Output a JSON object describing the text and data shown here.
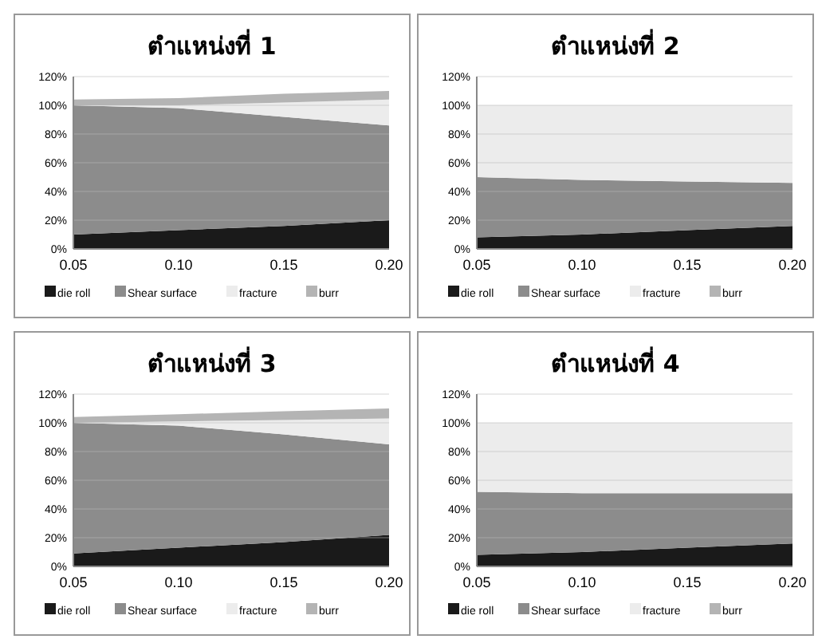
{
  "chart_data": [
    {
      "type": "area",
      "title": "ตำแหน่งที่ 1",
      "stacked": true,
      "x": [
        0.05,
        0.1,
        0.15,
        0.2
      ],
      "xlim": [
        0.05,
        0.2
      ],
      "xticks": [
        {
          "value": 0.05,
          "label": "0.05"
        },
        {
          "value": 0.1,
          "label": "0.10"
        },
        {
          "value": 0.15,
          "label": "0.15"
        },
        {
          "value": 0.2,
          "label": "0.20"
        }
      ],
      "ylim": [
        0,
        120
      ],
      "yticks": [
        {
          "value": 0,
          "label": "0%"
        },
        {
          "value": 20,
          "label": "20%"
        },
        {
          "value": 40,
          "label": "40%"
        },
        {
          "value": 60,
          "label": "60%"
        },
        {
          "value": 80,
          "label": "80%"
        },
        {
          "value": 100,
          "label": "100%"
        },
        {
          "value": 120,
          "label": "120%"
        }
      ],
      "grid": "y",
      "legend": "bottom",
      "series": [
        {
          "name": "die roll",
          "color": "#1a1a1a",
          "values": [
            10,
            13,
            16,
            20
          ]
        },
        {
          "name": "Shear surface",
          "color": "#8c8c8c",
          "values": [
            90,
            85,
            76,
            66
          ]
        },
        {
          "name": "fracture",
          "color": "#ececec",
          "values": [
            0,
            2,
            10,
            18
          ]
        },
        {
          "name": "burr",
          "color": "#b4b4b4",
          "values": [
            4,
            5,
            6,
            6
          ]
        }
      ]
    },
    {
      "type": "area",
      "title": "ตำแหน่งที่ 2",
      "stacked": true,
      "x": [
        0.05,
        0.1,
        0.15,
        0.2
      ],
      "xlim": [
        0.05,
        0.2
      ],
      "xticks": [
        {
          "value": 0.05,
          "label": "0.05"
        },
        {
          "value": 0.1,
          "label": "0.10"
        },
        {
          "value": 0.15,
          "label": "0.15"
        },
        {
          "value": 0.2,
          "label": "0.20"
        }
      ],
      "ylim": [
        0,
        120
      ],
      "yticks": [
        {
          "value": 0,
          "label": "0%"
        },
        {
          "value": 20,
          "label": "20%"
        },
        {
          "value": 40,
          "label": "40%"
        },
        {
          "value": 60,
          "label": "60%"
        },
        {
          "value": 80,
          "label": "80%"
        },
        {
          "value": 100,
          "label": "100%"
        },
        {
          "value": 120,
          "label": "120%"
        }
      ],
      "grid": "y",
      "legend": "bottom",
      "series": [
        {
          "name": "die roll",
          "color": "#1a1a1a",
          "values": [
            8,
            10,
            13,
            16
          ]
        },
        {
          "name": "Shear surface",
          "color": "#8c8c8c",
          "values": [
            42,
            38,
            34,
            30
          ]
        },
        {
          "name": "fracture",
          "color": "#ececec",
          "values": [
            50,
            52,
            53,
            54
          ]
        },
        {
          "name": "burr",
          "color": "#b4b4b4",
          "values": [
            null,
            null,
            null,
            null
          ]
        }
      ]
    },
    {
      "type": "area",
      "title": "ตำแหน่งที่ 3",
      "stacked": true,
      "x": [
        0.05,
        0.1,
        0.15,
        0.2
      ],
      "xlim": [
        0.05,
        0.2
      ],
      "xticks": [
        {
          "value": 0.05,
          "label": "0.05"
        },
        {
          "value": 0.1,
          "label": "0.10"
        },
        {
          "value": 0.15,
          "label": "0.15"
        },
        {
          "value": 0.2,
          "label": "0.20"
        }
      ],
      "ylim": [
        0,
        120
      ],
      "yticks": [
        {
          "value": 0,
          "label": "0%"
        },
        {
          "value": 20,
          "label": "20%"
        },
        {
          "value": 40,
          "label": "40%"
        },
        {
          "value": 60,
          "label": "60%"
        },
        {
          "value": 80,
          "label": "80%"
        },
        {
          "value": 100,
          "label": "100%"
        },
        {
          "value": 120,
          "label": "120%"
        }
      ],
      "grid": "y",
      "legend": "bottom",
      "series": [
        {
          "name": "die roll",
          "color": "#1a1a1a",
          "values": [
            9,
            13,
            17,
            22
          ]
        },
        {
          "name": "Shear surface",
          "color": "#8c8c8c",
          "values": [
            91,
            85,
            75,
            63
          ]
        },
        {
          "name": "fracture",
          "color": "#ececec",
          "values": [
            0,
            3,
            10,
            18
          ]
        },
        {
          "name": "burr",
          "color": "#b4b4b4",
          "values": [
            4,
            5,
            6,
            7
          ]
        }
      ]
    },
    {
      "type": "area",
      "title": "ตำแหน่งที่ 4",
      "stacked": true,
      "x": [
        0.05,
        0.1,
        0.15,
        0.2
      ],
      "xlim": [
        0.05,
        0.2
      ],
      "xticks": [
        {
          "value": 0.05,
          "label": "0.05"
        },
        {
          "value": 0.1,
          "label": "0.10"
        },
        {
          "value": 0.15,
          "label": "0.15"
        },
        {
          "value": 0.2,
          "label": "0.20"
        }
      ],
      "ylim": [
        0,
        120
      ],
      "yticks": [
        {
          "value": 0,
          "label": "0%"
        },
        {
          "value": 20,
          "label": "20%"
        },
        {
          "value": 40,
          "label": "40%"
        },
        {
          "value": 60,
          "label": "60%"
        },
        {
          "value": 80,
          "label": "80%"
        },
        {
          "value": 100,
          "label": "100%"
        },
        {
          "value": 120,
          "label": "120%"
        }
      ],
      "grid": "y",
      "legend": "bottom",
      "series": [
        {
          "name": "die roll",
          "color": "#1a1a1a",
          "values": [
            8,
            10,
            13,
            16
          ]
        },
        {
          "name": "Shear surface",
          "color": "#8c8c8c",
          "values": [
            44,
            41,
            38,
            35
          ]
        },
        {
          "name": "fracture",
          "color": "#ececec",
          "values": [
            48,
            49,
            49,
            49
          ]
        },
        {
          "name": "burr",
          "color": "#b4b4b4",
          "values": [
            null,
            null,
            null,
            null
          ]
        }
      ]
    }
  ]
}
